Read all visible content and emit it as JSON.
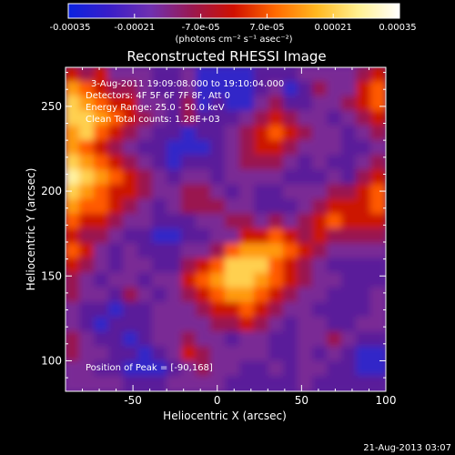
{
  "colorbar": {
    "ticks": [
      "-0.00035",
      "-0.00021",
      "-7.0e-05",
      "7.0e-05",
      "0.00021",
      "0.00035"
    ],
    "unit_label": "(photons cm⁻² s⁻¹ asec⁻²)",
    "colors": [
      "#0a22e0",
      "#3a1ec8",
      "#7030b0",
      "#9a1850",
      "#d01000",
      "#ff6a00",
      "#ffb820",
      "#fff090",
      "#ffffff"
    ]
  },
  "chart_data": {
    "type": "heatmap",
    "title": "Reconstructed RHESSI Image",
    "xlabel": "Heliocentric X (arcsec)",
    "ylabel": "Heliocentric Y (arcsec)",
    "xlim": [
      -90,
      100
    ],
    "ylim": [
      82,
      273
    ],
    "xticks": [
      -50,
      0,
      50,
      100
    ],
    "yticks": [
      100,
      150,
      200,
      250
    ],
    "color_range": [
      -0.00035,
      0.00035
    ],
    "peak": [
      -90,
      168
    ],
    "grid_step": 10,
    "rows_top_to_bottom": [
      "4342221120000111222234",
      "6543321120000120132245",
      "7654422130100231122345",
      "7765432131112343221234",
      "6754321101123454322123",
      "6543211000123443222112",
      "7654321011123332121123",
      "8765432122122221112134",
      "7654432233212112223345",
      "6554321233322111234445",
      "5443221112233232345444",
      "4332110011224454343333",
      "5421211122356665432222",
      "4321221134577754321111",
      "3212212245677654322111",
      "3221321234566543221112",
      "2110112223445432211112",
      "2101112222334321221122",
      "3211012232212211223211",
      "3221101243222211212100",
      "2211000123221121221100",
      "2222111222211111211111"
    ]
  },
  "annotations": {
    "time_range": "3-Aug-2011 19:09:08.000 to 19:10:04.000",
    "detectors": "Detectors: 4F 5F 6F 7F 8F, Att 0",
    "energy": "Energy Range: 25.0 - 50.0 keV",
    "clean": "Clean    Total counts: 1.28E+03",
    "peak_text": "Position of Peak = [-90,168]"
  },
  "footer_date": "21-Aug-2013 03:07"
}
